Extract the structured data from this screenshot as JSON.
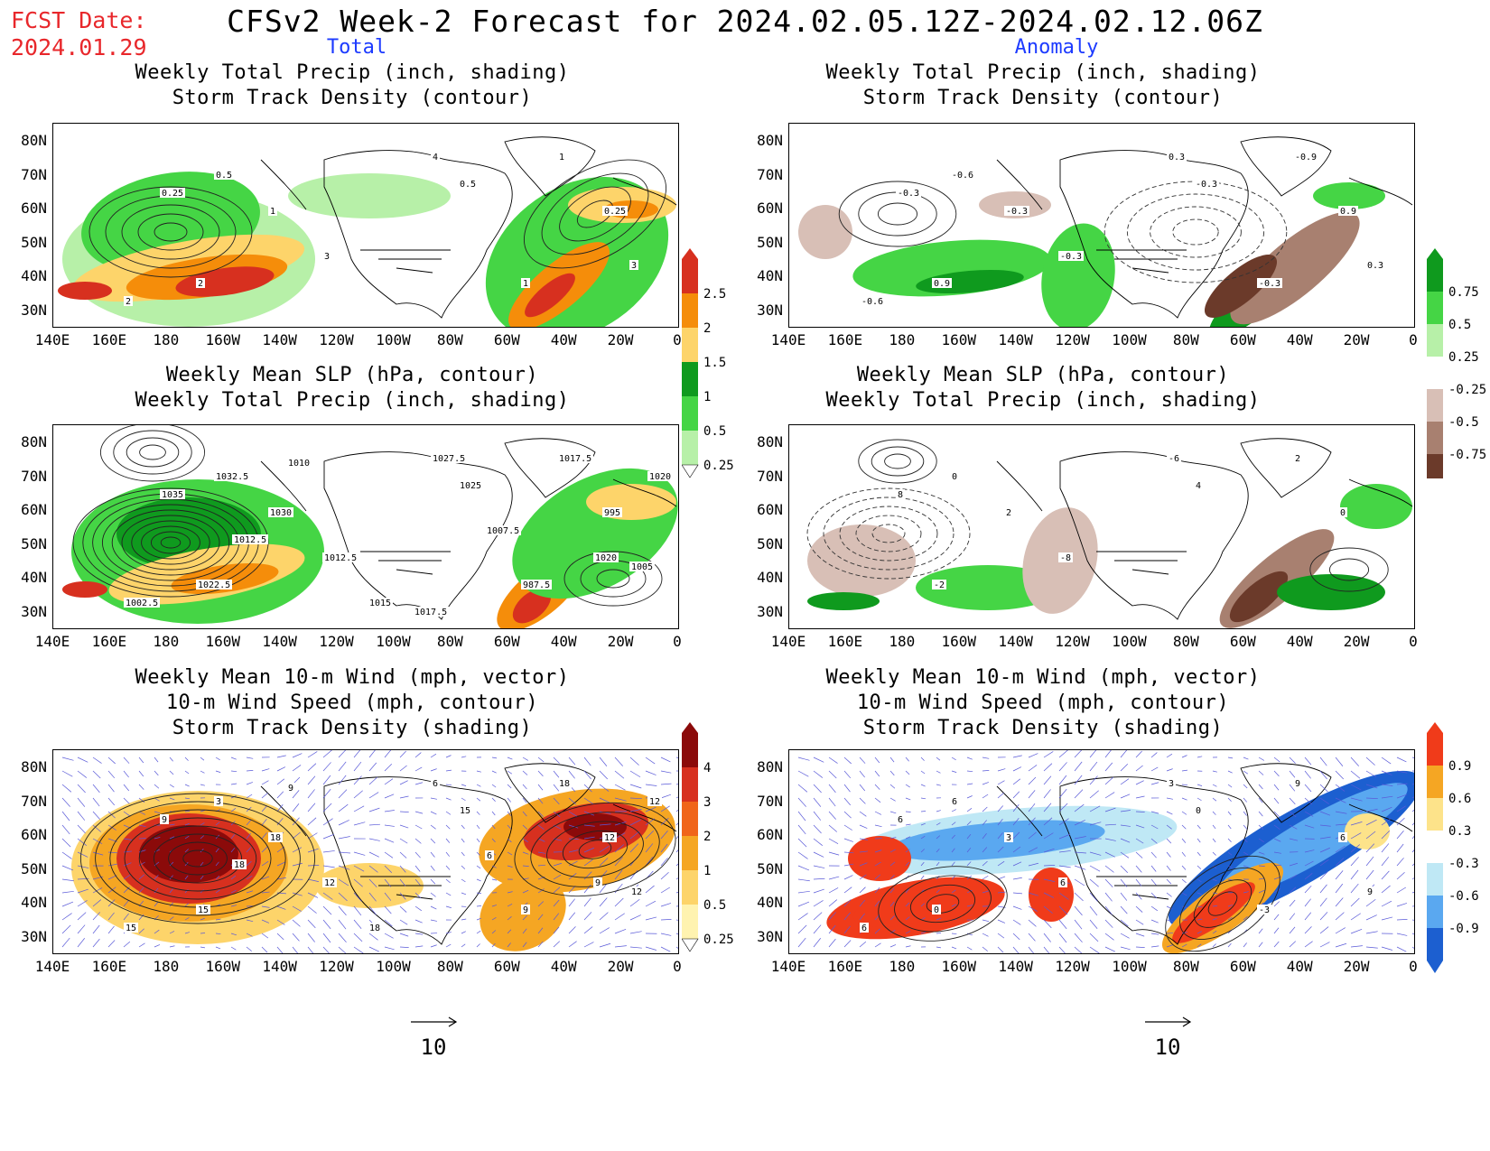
{
  "header": {
    "fcst_label": "FCST Date:",
    "fcst_date": "2024.01.29",
    "title": "CFSv2 Week-2 Forecast for 2024.02.05.12Z-2024.02.12.06Z",
    "col_left": "Total",
    "col_right": "Anomaly"
  },
  "axes": {
    "lat_labels": [
      "80N",
      "70N",
      "60N",
      "50N",
      "40N",
      "30N"
    ],
    "lon_labels": [
      "140E",
      "160E",
      "180",
      "160W",
      "140W",
      "120W",
      "100W",
      "80W",
      "60W",
      "40W",
      "20W",
      "0"
    ]
  },
  "panels": {
    "r1_left": [
      "Weekly Total Precip (inch, shading)",
      "Storm Track Density (contour)"
    ],
    "r1_right": [
      "Weekly Total Precip (inch, shading)",
      "Storm Track Density (contour)"
    ],
    "r2_left": [
      "Weekly Mean SLP (hPa, contour)",
      "Weekly Total Precip (inch, shading)"
    ],
    "r2_right": [
      "Weekly Mean SLP (hPa, contour)",
      "Weekly Total Precip (inch, shading)"
    ],
    "r3_left": [
      "Weekly Mean 10-m Wind (mph, vector)",
      "10-m Wind Speed (mph, contour)",
      "Storm Track Density (shading)"
    ],
    "r3_right": [
      "Weekly Mean 10-m Wind (mph, vector)",
      "10-m Wind Speed (mph, contour)",
      "Storm Track Density (shading)"
    ]
  },
  "colorbars": {
    "precip_total": {
      "labels": [
        "2.5",
        "2",
        "1.5",
        "1",
        "0.5",
        "0.25"
      ],
      "colors": [
        "#d7301f",
        "#f58d0a",
        "#fdd46a",
        "#0f9a1e",
        "#45d545",
        "#b7f0a8"
      ]
    },
    "precip_anom": {
      "labels": [
        "0.75",
        "0.5",
        "0.25",
        "-0.25",
        "-0.5",
        "-0.75"
      ],
      "colors_pos": [
        "#0f9a1e",
        "#45d545",
        "#b7f0a8"
      ],
      "colors_neg": [
        "#d8bfb6",
        "#a88070",
        "#6b3a2a"
      ]
    },
    "storm_total": {
      "labels": [
        "4",
        "3",
        "2",
        "1",
        "0.5",
        "0.25"
      ],
      "colors": [
        "#8b0a0a",
        "#d7301f",
        "#f0651a",
        "#f5a623",
        "#fdd46a",
        "#fff3b0"
      ]
    },
    "storm_anom": {
      "labels": [
        "0.9",
        "0.6",
        "0.3",
        "-0.3",
        "-0.6",
        "-0.9"
      ],
      "colors_pos": [
        "#f03b1a",
        "#f5a623",
        "#fde38a"
      ],
      "colors_neg": [
        "#bfe8f5",
        "#5aa8f0",
        "#1c5fd0"
      ]
    }
  },
  "contour_labels": {
    "r1_left": [
      "0.25",
      "0.5",
      "1",
      "2",
      "3",
      "4",
      "0.5",
      "1",
      "0.25",
      "1",
      "2",
      "3"
    ],
    "r1_right": [
      "-0.3",
      "-0.6",
      "-0.3",
      "0.9",
      "-0.3",
      "0.3",
      "-0.3",
      "-0.9",
      "0.9",
      "-0.3",
      "-0.6",
      "0.3"
    ],
    "r2_left": [
      "1035",
      "1032.5",
      "1030",
      "1022.5",
      "1012.5",
      "1027.5",
      "1025",
      "1017.5",
      "995",
      "987.5",
      "1002.5",
      "1005",
      "1015",
      "1012.5",
      "1010",
      "1007.5",
      "1020",
      "1020",
      "1017.5"
    ],
    "r2_right": [
      "8",
      "0",
      "2",
      "-2",
      "-8",
      "-6",
      "4",
      "2",
      "0"
    ],
    "r3_left": [
      "9",
      "3",
      "18",
      "15",
      "12",
      "6",
      "15",
      "18",
      "12",
      "9",
      "15",
      "12",
      "18",
      "18",
      "9",
      "6",
      "9",
      "12"
    ],
    "r3_right": [
      "6",
      "6",
      "3",
      "0",
      "6",
      "3",
      "0",
      "9",
      "6",
      "-3",
      "6",
      "9"
    ]
  },
  "reference_vector": "10"
}
